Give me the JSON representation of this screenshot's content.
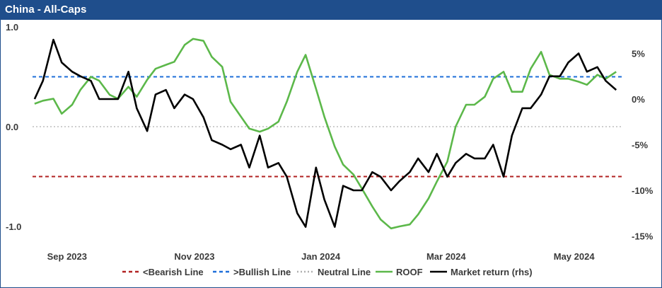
{
  "header": {
    "title": "China - All-Caps"
  },
  "chart_data": {
    "type": "line",
    "title": "China - All-Caps",
    "x_ticks": [
      "Sep 2023",
      "Nov 2023",
      "Jan 2024",
      "Mar 2024",
      "May 2024"
    ],
    "x_tick_dates": [
      "2023-09-01",
      "2023-11-01",
      "2024-01-01",
      "2024-03-01",
      "2024-05-01"
    ],
    "xlim": [
      "2023-08-25",
      "2024-06-03"
    ],
    "y_left": {
      "ylim": [
        -1.15,
        1.0
      ],
      "ticks": [
        1.0,
        0.0,
        -1.0
      ],
      "tick_labels": [
        "1.0",
        "0.0",
        "-1.0"
      ]
    },
    "y_right": {
      "ylim": [
        -15,
        7
      ],
      "unit": "%",
      "ticks": [
        5,
        0,
        -5,
        -10,
        -15
      ],
      "tick_labels": [
        "5%",
        "0%",
        "-5%",
        "-10%",
        "-15%"
      ]
    },
    "reference_lines": [
      {
        "name": "<Bearish Line",
        "value": -0.5,
        "color": "#b22222",
        "style": "dashed"
      },
      {
        "name": ">Bullish Line",
        "value": 0.5,
        "color": "#1e6fd9",
        "style": "dashed"
      },
      {
        "name": "Neutral Line",
        "value": 0.0,
        "color": "#b0b0b0",
        "style": "dotted"
      }
    ],
    "series": [
      {
        "name": "ROOF",
        "axis": "left",
        "color": "#5cb84a",
        "x": [
          "2023-08-26",
          "2023-08-30",
          "2023-09-04",
          "2023-09-08",
          "2023-09-13",
          "2023-09-17",
          "2023-09-22",
          "2023-09-26",
          "2023-10-01",
          "2023-10-05",
          "2023-10-10",
          "2023-10-14",
          "2023-10-19",
          "2023-10-23",
          "2023-10-28",
          "2023-11-01",
          "2023-11-06",
          "2023-11-10",
          "2023-11-15",
          "2023-11-19",
          "2023-11-24",
          "2023-11-28",
          "2023-12-03",
          "2023-12-07",
          "2023-12-12",
          "2023-12-16",
          "2023-12-21",
          "2023-12-25",
          "2023-12-30",
          "2024-01-03",
          "2024-01-08",
          "2024-01-12",
          "2024-01-17",
          "2024-01-21",
          "2024-01-26",
          "2024-01-30",
          "2024-02-04",
          "2024-02-08",
          "2024-02-13",
          "2024-02-17",
          "2024-02-22",
          "2024-02-26",
          "2024-03-02",
          "2024-03-06",
          "2024-03-11",
          "2024-03-15",
          "2024-03-20",
          "2024-03-24",
          "2024-03-29",
          "2024-04-02",
          "2024-04-07",
          "2024-04-11",
          "2024-04-16",
          "2024-04-20",
          "2024-04-25",
          "2024-04-29",
          "2024-05-04",
          "2024-05-08",
          "2024-05-13",
          "2024-05-17",
          "2024-05-22",
          "2024-05-26",
          "2024-05-31"
        ],
        "values": [
          0.23,
          0.26,
          0.28,
          0.13,
          0.22,
          0.37,
          0.5,
          0.46,
          0.32,
          0.28,
          0.4,
          0.3,
          0.47,
          0.58,
          0.62,
          0.65,
          0.82,
          0.88,
          0.86,
          0.7,
          0.6,
          0.25,
          0.1,
          -0.02,
          -0.05,
          -0.02,
          0.05,
          0.25,
          0.55,
          0.72,
          0.38,
          0.1,
          -0.2,
          -0.38,
          -0.48,
          -0.62,
          -0.8,
          -0.93,
          -1.02,
          -1.0,
          -0.98,
          -0.88,
          -0.72,
          -0.55,
          -0.35,
          0.0,
          0.22,
          0.22,
          0.3,
          0.48,
          0.55,
          0.35,
          0.35,
          0.58,
          0.75,
          0.52,
          0.48,
          0.48,
          0.45,
          0.42,
          0.52,
          0.48,
          0.55
        ]
      },
      {
        "name": "Market return (rhs)",
        "axis": "right",
        "color": "#000000",
        "x": [
          "2023-08-26",
          "2023-08-30",
          "2023-09-04",
          "2023-09-08",
          "2023-09-13",
          "2023-09-17",
          "2023-09-22",
          "2023-09-26",
          "2023-10-01",
          "2023-10-05",
          "2023-10-10",
          "2023-10-14",
          "2023-10-19",
          "2023-10-23",
          "2023-10-28",
          "2023-11-01",
          "2023-11-06",
          "2023-11-10",
          "2023-11-15",
          "2023-11-19",
          "2023-11-24",
          "2023-11-28",
          "2023-12-03",
          "2023-12-07",
          "2023-12-12",
          "2023-12-16",
          "2023-12-21",
          "2023-12-25",
          "2023-12-30",
          "2024-01-03",
          "2024-01-08",
          "2024-01-12",
          "2024-01-17",
          "2024-01-21",
          "2024-01-26",
          "2024-01-30",
          "2024-02-04",
          "2024-02-08",
          "2024-02-13",
          "2024-02-17",
          "2024-02-22",
          "2024-02-26",
          "2024-03-02",
          "2024-03-06",
          "2024-03-11",
          "2024-03-15",
          "2024-03-20",
          "2024-03-24",
          "2024-03-29",
          "2024-04-02",
          "2024-04-07",
          "2024-04-11",
          "2024-04-16",
          "2024-04-20",
          "2024-04-25",
          "2024-04-29",
          "2024-05-04",
          "2024-05-08",
          "2024-05-13",
          "2024-05-17",
          "2024-05-22",
          "2024-05-26",
          "2024-05-31"
        ],
        "values": [
          0.0,
          2.0,
          6.5,
          4.0,
          3.0,
          2.5,
          2.0,
          0.0,
          0.0,
          0.0,
          3.0,
          -1.0,
          -3.5,
          0.5,
          1.0,
          -1.0,
          0.5,
          0.0,
          -2.0,
          -4.5,
          -5.0,
          -5.5,
          -5.0,
          -7.5,
          -4.0,
          -7.5,
          -7.0,
          -8.5,
          -12.5,
          -14.0,
          -7.5,
          -11.0,
          -14.0,
          -9.5,
          -10.0,
          -10.0,
          -8.0,
          -8.5,
          -10.0,
          -9.0,
          -8.0,
          -6.5,
          -8.0,
          -6.0,
          -8.5,
          -7.0,
          -6.0,
          -6.5,
          -6.5,
          -5.0,
          -8.5,
          -4.0,
          -1.0,
          -1.0,
          0.5,
          2.5,
          2.5,
          4.0,
          5.0,
          3.0,
          3.5,
          2.0,
          1.0
        ]
      }
    ],
    "legend": {
      "position": "bottom",
      "entries": [
        "<Bearish Line",
        ">Bullish Line",
        "Neutral Line",
        "ROOF",
        "Market return (rhs)"
      ]
    },
    "grid": false
  }
}
